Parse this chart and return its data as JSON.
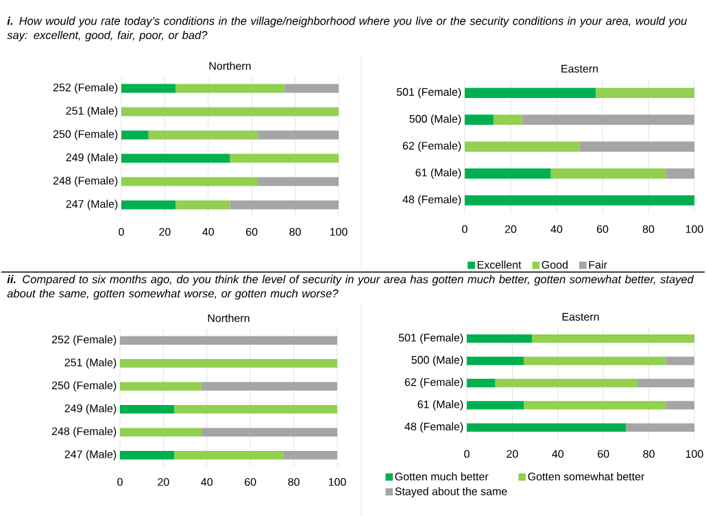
{
  "chart_data": [
    {
      "type": "bar",
      "orientation": "horizontal",
      "stacked": true,
      "title": "Northern",
      "annotations": [
        "**i.** How would you rate today’s conditions in the village/neighborhood where you live or the security conditions in your area, would you say: excellent, good, fair, poor, or bad?"
      ],
      "categories": [
        "252 (Female)",
        "251 (Male)",
        "250 (Female)",
        "249 (Male)",
        "248 (Female)",
        "247 (Male)"
      ],
      "series": [
        {
          "color": "#00b050",
          "values": [
            25,
            0,
            12.5,
            50,
            0,
            25
          ]
        },
        {
          "color": "#92d050",
          "values": [
            50,
            100,
            50,
            50,
            62.5,
            25
          ]
        },
        {
          "color": "#a5a5a5",
          "values": [
            25,
            0,
            37.5,
            0,
            37.5,
            50
          ]
        }
      ],
      "xlim": [
        0,
        100
      ],
      "xticks": [
        0,
        20,
        40,
        60,
        80,
        100
      ],
      "grid": "x"
    },
    {
      "type": "bar",
      "orientation": "horizontal",
      "stacked": true,
      "title": "Eastern",
      "categories": [
        "501 (Female)",
        "500 (Male)",
        "62 (Female)",
        "61 (Male)",
        "48 (Female)"
      ],
      "series": [
        {
          "name": "Excellent",
          "color": "#00b050",
          "values": [
            57,
            12.5,
            0,
            37.5,
            100
          ]
        },
        {
          "name": "Good",
          "color": "#92d050",
          "values": [
            43,
            12.5,
            50,
            50,
            0
          ]
        },
        {
          "name": "Fair",
          "color": "#a5a5a5",
          "values": [
            0,
            75,
            50,
            12.5,
            0
          ]
        }
      ],
      "xlim": [
        0,
        100
      ],
      "xticks": [
        0,
        20,
        40,
        60,
        80,
        100
      ],
      "grid": "x",
      "legend": "bottom"
    },
    {
      "type": "bar",
      "orientation": "horizontal",
      "stacked": true,
      "title": "Northern",
      "annotations": [
        "**ii.** Compared to six months ago, do you think the level of security in your area has gotten much better, gotten somewhat better, stayed about the same, gotten somewhat worse, or gotten much worse?"
      ],
      "categories": [
        "252 (Female)",
        "251 (Male)",
        "250 (Female)",
        "249 (Male)",
        "248 (Female)",
        "247 (Male)"
      ],
      "series": [
        {
          "color": "#00b050",
          "values": [
            0,
            0,
            0,
            25,
            0,
            25
          ]
        },
        {
          "color": "#92d050",
          "values": [
            0,
            100,
            37.5,
            75,
            37.5,
            50
          ]
        },
        {
          "color": "#a5a5a5",
          "values": [
            100,
            0,
            62.5,
            0,
            62.5,
            25
          ]
        }
      ],
      "xlim": [
        0,
        100
      ],
      "xticks": [
        0,
        20,
        40,
        60,
        80,
        100
      ],
      "grid": "x"
    },
    {
      "type": "bar",
      "orientation": "horizontal",
      "stacked": true,
      "title": "Eastern",
      "categories": [
        "501 (Female)",
        "500 (Male)",
        "62 (Female)",
        "61 (Male)",
        "48 (Female)"
      ],
      "series": [
        {
          "name": "Gotten much better",
          "color": "#00b050",
          "values": [
            28.6,
            25,
            12.5,
            25,
            70
          ]
        },
        {
          "name": "Gotten somewhat better",
          "color": "#92d050",
          "values": [
            71.4,
            62.5,
            62.5,
            62.5,
            0
          ]
        },
        {
          "name": "Stayed about the same",
          "color": "#a5a5a5",
          "values": [
            0,
            12.5,
            25,
            12.5,
            30
          ]
        }
      ],
      "xlim": [
        0,
        100
      ],
      "xticks": [
        0,
        20,
        40,
        60,
        80,
        100
      ],
      "grid": "x",
      "legend": "bottom"
    }
  ]
}
